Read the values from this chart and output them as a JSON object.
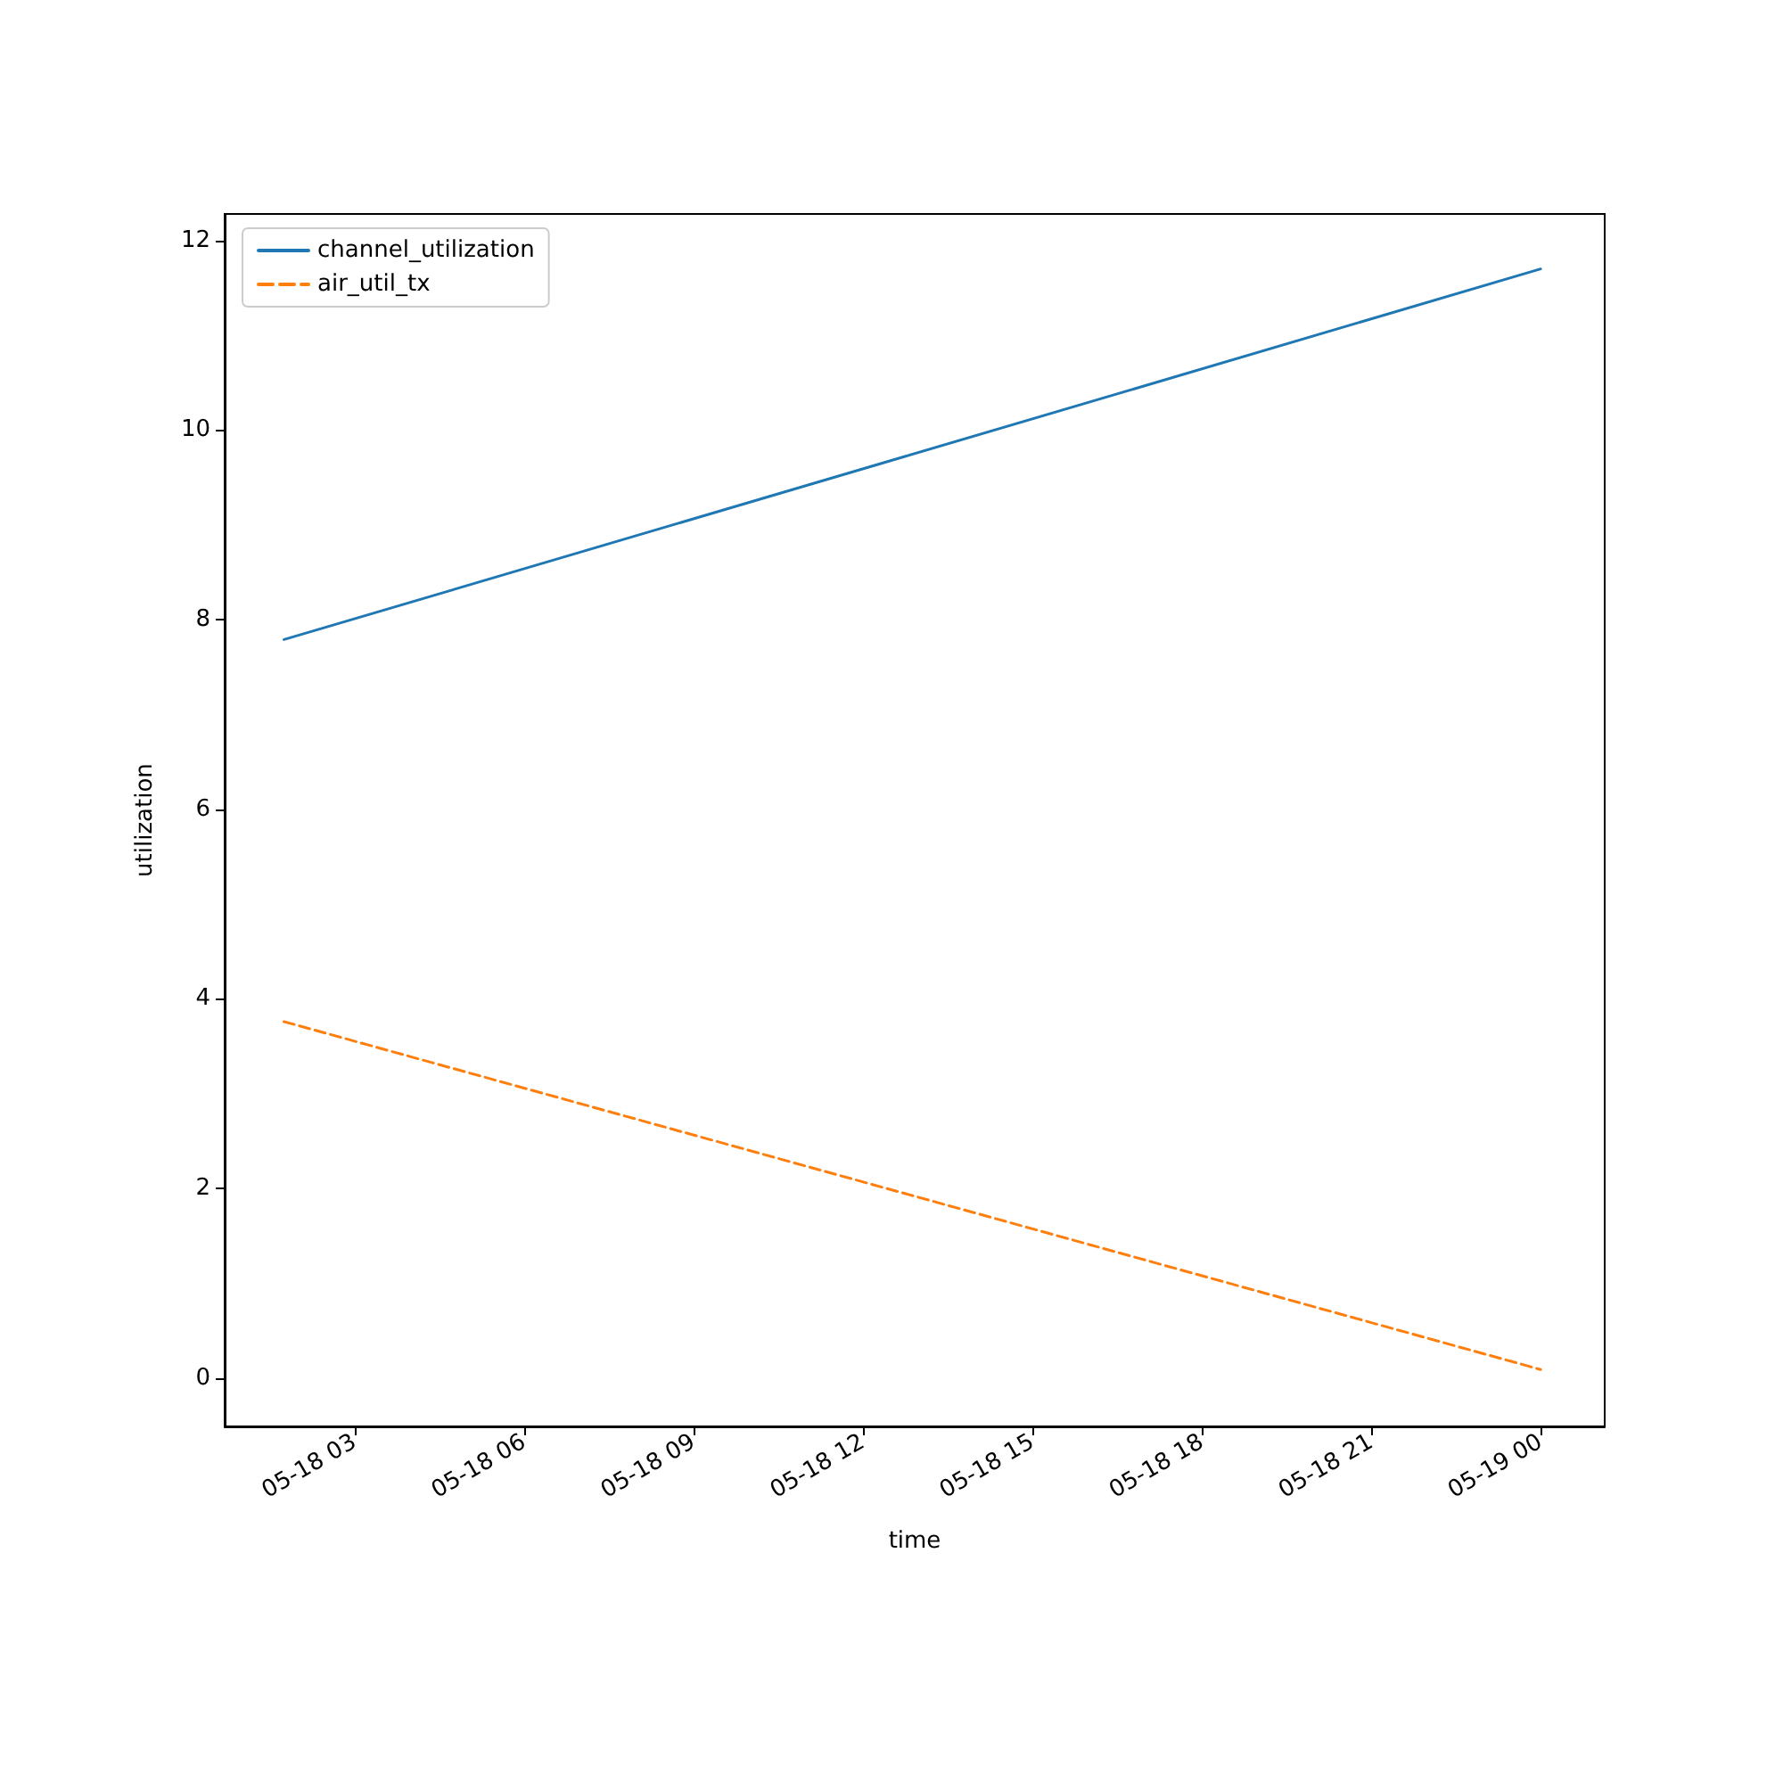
{
  "chart_data": {
    "type": "line",
    "xlabel": "time",
    "ylabel": "utilization",
    "x": [
      "--05-18T01:45",
      "--05-19T00:00"
    ],
    "series": [
      {
        "name": "channel_utilization",
        "color": "#1f77b4",
        "values": [
          7.79,
          11.7
        ],
        "line_style": "solid"
      },
      {
        "name": "air_util_tx",
        "color": "#ff7f0e",
        "values": [
          3.76,
          0.09
        ],
        "line_style": "dashed"
      }
    ],
    "xlim": [
      "--05-18T00:42",
      "--05-19T01:08"
    ],
    "xticks": [
      {
        "value": "--05-18T03:00",
        "label": "05-18 03"
      },
      {
        "value": "--05-18T06:00",
        "label": "05-18 06"
      },
      {
        "value": "--05-18T09:00",
        "label": "05-18 09"
      },
      {
        "value": "--05-18T12:00",
        "label": "05-18 12"
      },
      {
        "value": "--05-18T15:00",
        "label": "05-18 15"
      },
      {
        "value": "--05-18T18:00",
        "label": "05-18 18"
      },
      {
        "value": "--05-18T21:00",
        "label": "05-18 21"
      },
      {
        "value": "--05-19T00:00",
        "label": "05-19 00"
      }
    ],
    "ylim": [
      -0.51,
      12.28
    ],
    "yticks": [
      0,
      2,
      4,
      6,
      8,
      10,
      12
    ],
    "grid": false,
    "legend": "top left",
    "marker": "none"
  }
}
